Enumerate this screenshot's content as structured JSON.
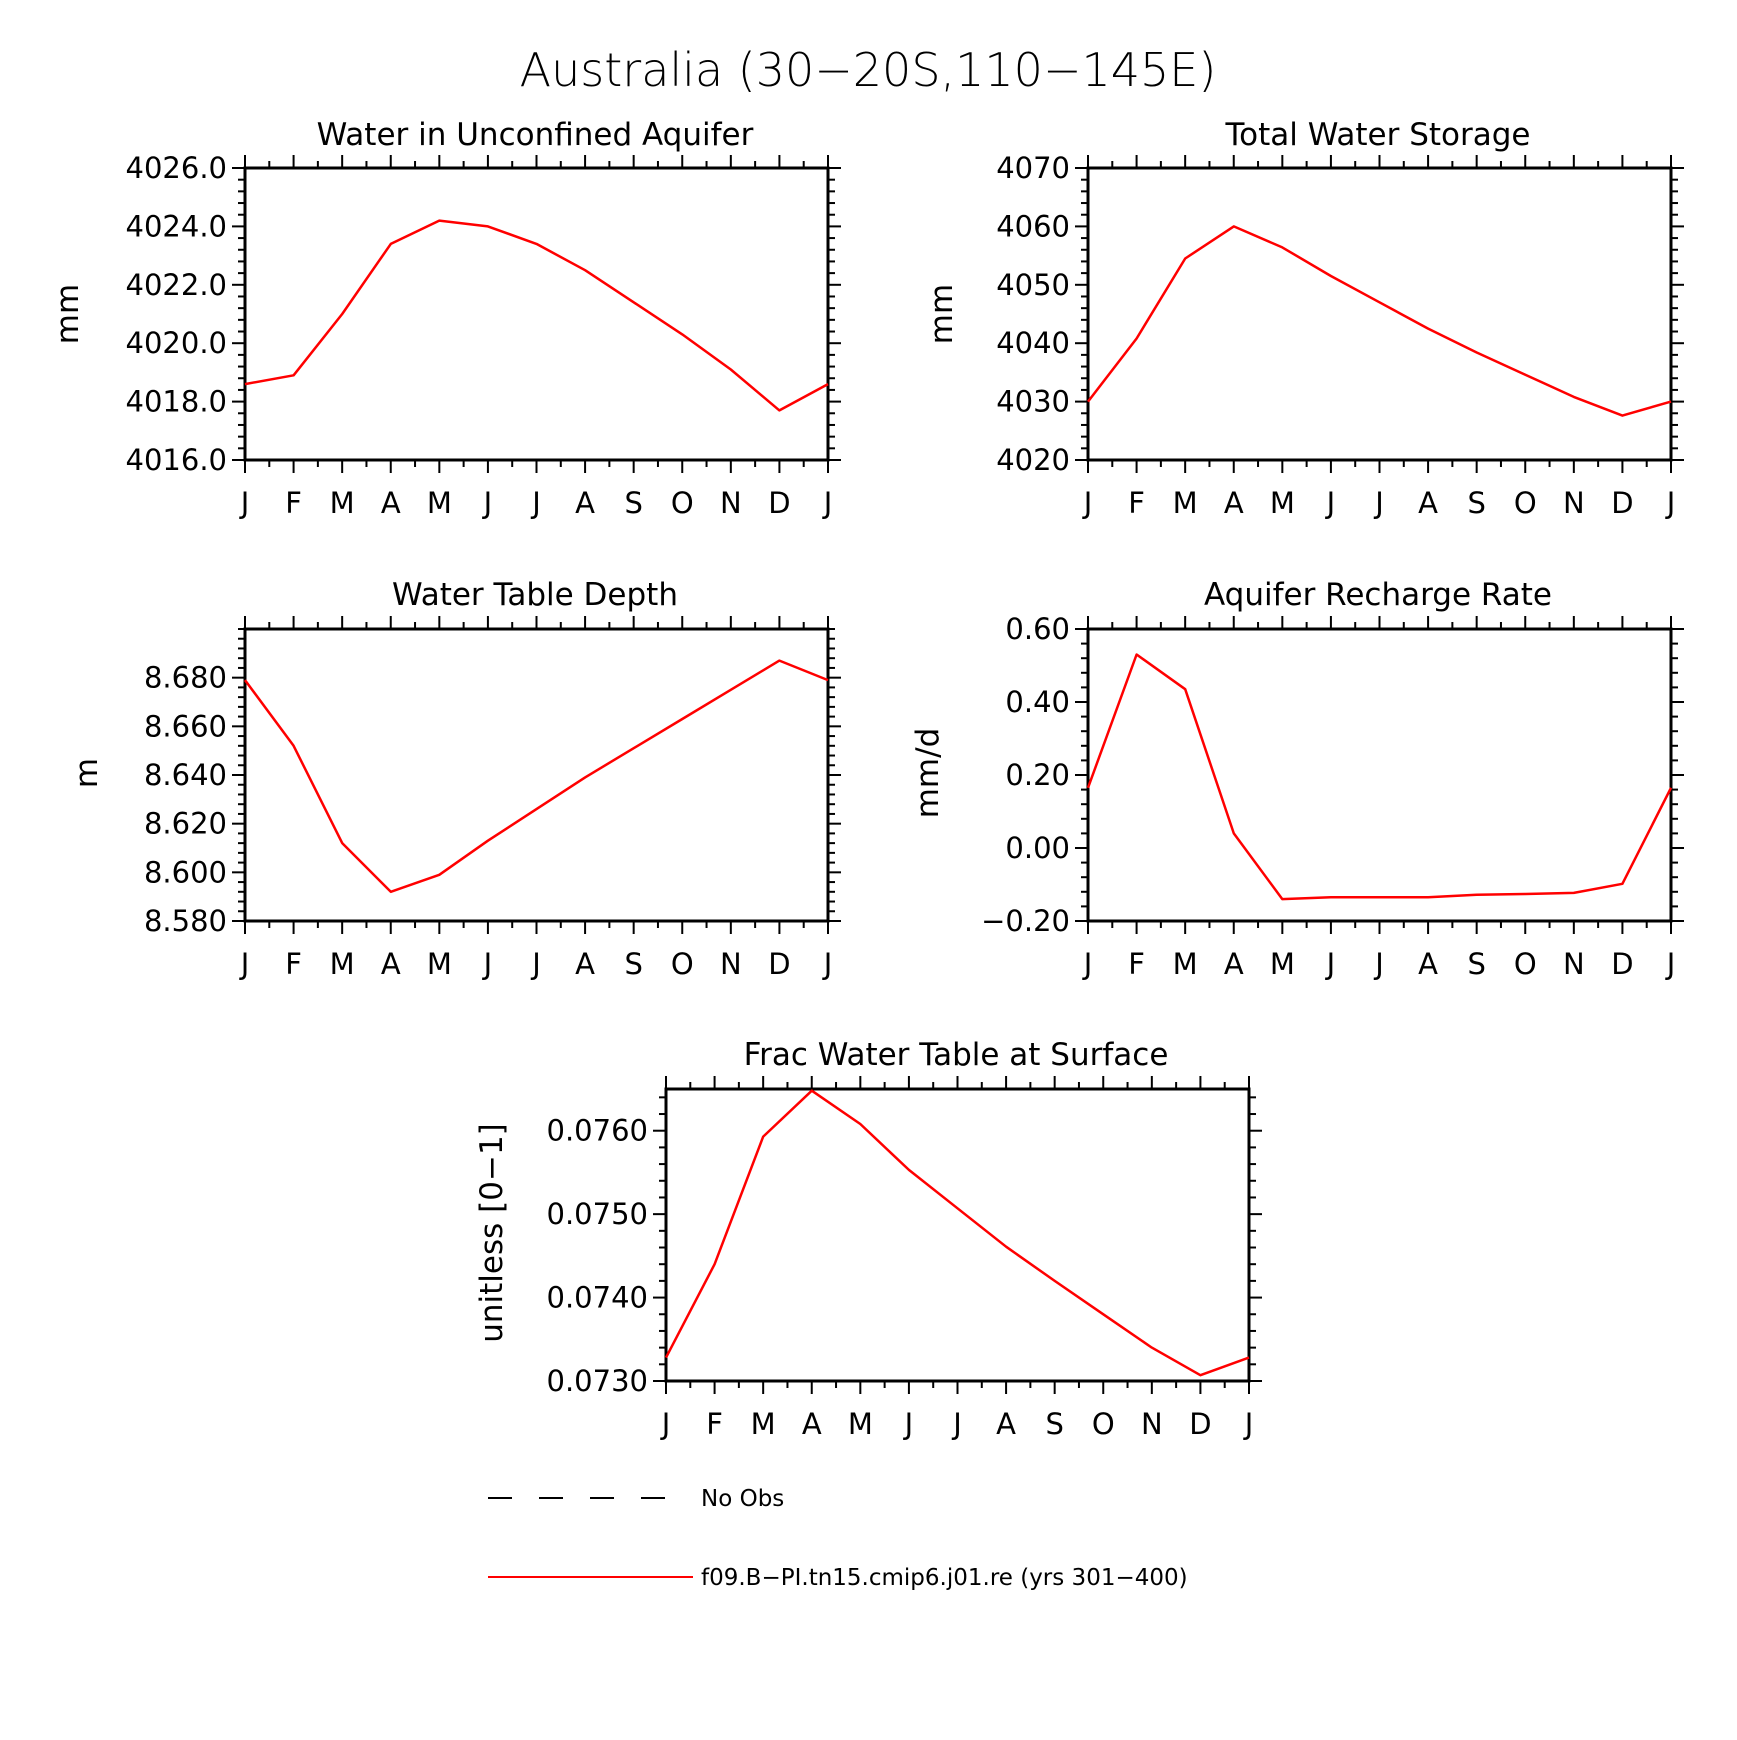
{
  "figure": {
    "title": "Australia (30−20S,110−145E)"
  },
  "legend": {
    "entries": [
      {
        "label": "No Obs",
        "style": "dashed",
        "color": "#000000"
      },
      {
        "label": "f09.B−PI.tn15.cmip6.j01.re (yrs 301−400)",
        "style": "solid",
        "color": "#ff0000"
      }
    ]
  },
  "colors": {
    "series": "#ff0000",
    "axes": "#000000",
    "background": "#ffffff"
  },
  "chart_data": [
    {
      "type": "line",
      "title": "Water in Unconfined Aquifer",
      "xlabel": "",
      "ylabel": "mm",
      "categories": [
        "J",
        "F",
        "M",
        "A",
        "M",
        "J",
        "J",
        "A",
        "S",
        "O",
        "N",
        "D",
        "J"
      ],
      "ylim": [
        4016.0,
        4026.0
      ],
      "yticks": [
        "4016.0",
        "4018.0",
        "4020.0",
        "4022.0",
        "4024.0",
        "4026.0"
      ],
      "y_minor_per_major": 4,
      "grid": false,
      "series": [
        {
          "name": "f09.B−PI.tn15.cmip6.j01.re (yrs 301−400)",
          "values": [
            4018.6,
            4018.9,
            4021.0,
            4023.4,
            4024.2,
            4024.0,
            4023.4,
            4022.5,
            4021.4,
            4020.3,
            4019.1,
            4017.7,
            4018.6
          ]
        }
      ]
    },
    {
      "type": "line",
      "title": "Total Water Storage",
      "xlabel": "",
      "ylabel": "mm",
      "categories": [
        "J",
        "F",
        "M",
        "A",
        "M",
        "J",
        "J",
        "A",
        "S",
        "O",
        "N",
        "D",
        "J"
      ],
      "ylim": [
        4020,
        4070
      ],
      "yticks": [
        "4020",
        "4030",
        "4040",
        "4050",
        "4060",
        "4070"
      ],
      "y_minor_per_major": 4,
      "grid": false,
      "series": [
        {
          "name": "f09.B−PI.tn15.cmip6.j01.re (yrs 301−400)",
          "values": [
            4030.0,
            4040.8,
            4054.5,
            4060.0,
            4056.4,
            4051.5,
            4047.0,
            4042.5,
            4038.4,
            4034.6,
            4030.8,
            4027.6,
            4030.0
          ]
        }
      ]
    },
    {
      "type": "line",
      "title": "Water Table Depth",
      "xlabel": "",
      "ylabel": "m",
      "categories": [
        "J",
        "F",
        "M",
        "A",
        "M",
        "J",
        "J",
        "A",
        "S",
        "O",
        "N",
        "D",
        "J"
      ],
      "ylim": [
        8.58,
        8.7
      ],
      "yticks": [
        "8.580",
        "8.600",
        "8.620",
        "8.640",
        "8.660",
        "8.680"
      ],
      "y_minor_per_major": 4,
      "grid": false,
      "series": [
        {
          "name": "f09.B−PI.tn15.cmip6.j01.re (yrs 301−400)",
          "values": [
            8.679,
            8.652,
            8.612,
            8.592,
            8.599,
            8.613,
            8.626,
            8.639,
            8.651,
            8.663,
            8.675,
            8.687,
            8.679
          ]
        }
      ]
    },
    {
      "type": "line",
      "title": "Aquifer Recharge Rate",
      "xlabel": "",
      "ylabel": "mm/d",
      "categories": [
        "J",
        "F",
        "M",
        "A",
        "M",
        "J",
        "J",
        "A",
        "S",
        "O",
        "N",
        "D",
        "J"
      ],
      "ylim": [
        -0.2,
        0.6
      ],
      "yticks": [
        "−0.20",
        "0.00",
        "0.20",
        "0.40",
        "0.60"
      ],
      "y_minor_per_major": 4,
      "grid": false,
      "series": [
        {
          "name": "f09.B−PI.tn15.cmip6.j01.re (yrs 301−400)",
          "values": [
            0.165,
            0.53,
            0.435,
            0.04,
            -0.14,
            -0.135,
            -0.135,
            -0.135,
            -0.128,
            -0.126,
            -0.123,
            -0.098,
            0.165
          ]
        }
      ]
    },
    {
      "type": "line",
      "title": "Frac Water Table at Surface",
      "xlabel": "",
      "ylabel": "unitless [0−1]",
      "categories": [
        "J",
        "F",
        "M",
        "A",
        "M",
        "J",
        "J",
        "A",
        "S",
        "O",
        "N",
        "D",
        "J"
      ],
      "ylim": [
        0.073,
        0.0765
      ],
      "yticks": [
        "0.0730",
        "0.0740",
        "0.0750",
        "0.0760"
      ],
      "y_minor_per_major": 4,
      "grid": false,
      "series": [
        {
          "name": "f09.B−PI.tn15.cmip6.j01.re (yrs 301−400)",
          "values": [
            0.07328,
            0.0744,
            0.07593,
            0.07648,
            0.07608,
            0.07553,
            0.07507,
            0.07461,
            0.0742,
            0.0738,
            0.0734,
            0.07307,
            0.07328
          ]
        }
      ]
    }
  ]
}
